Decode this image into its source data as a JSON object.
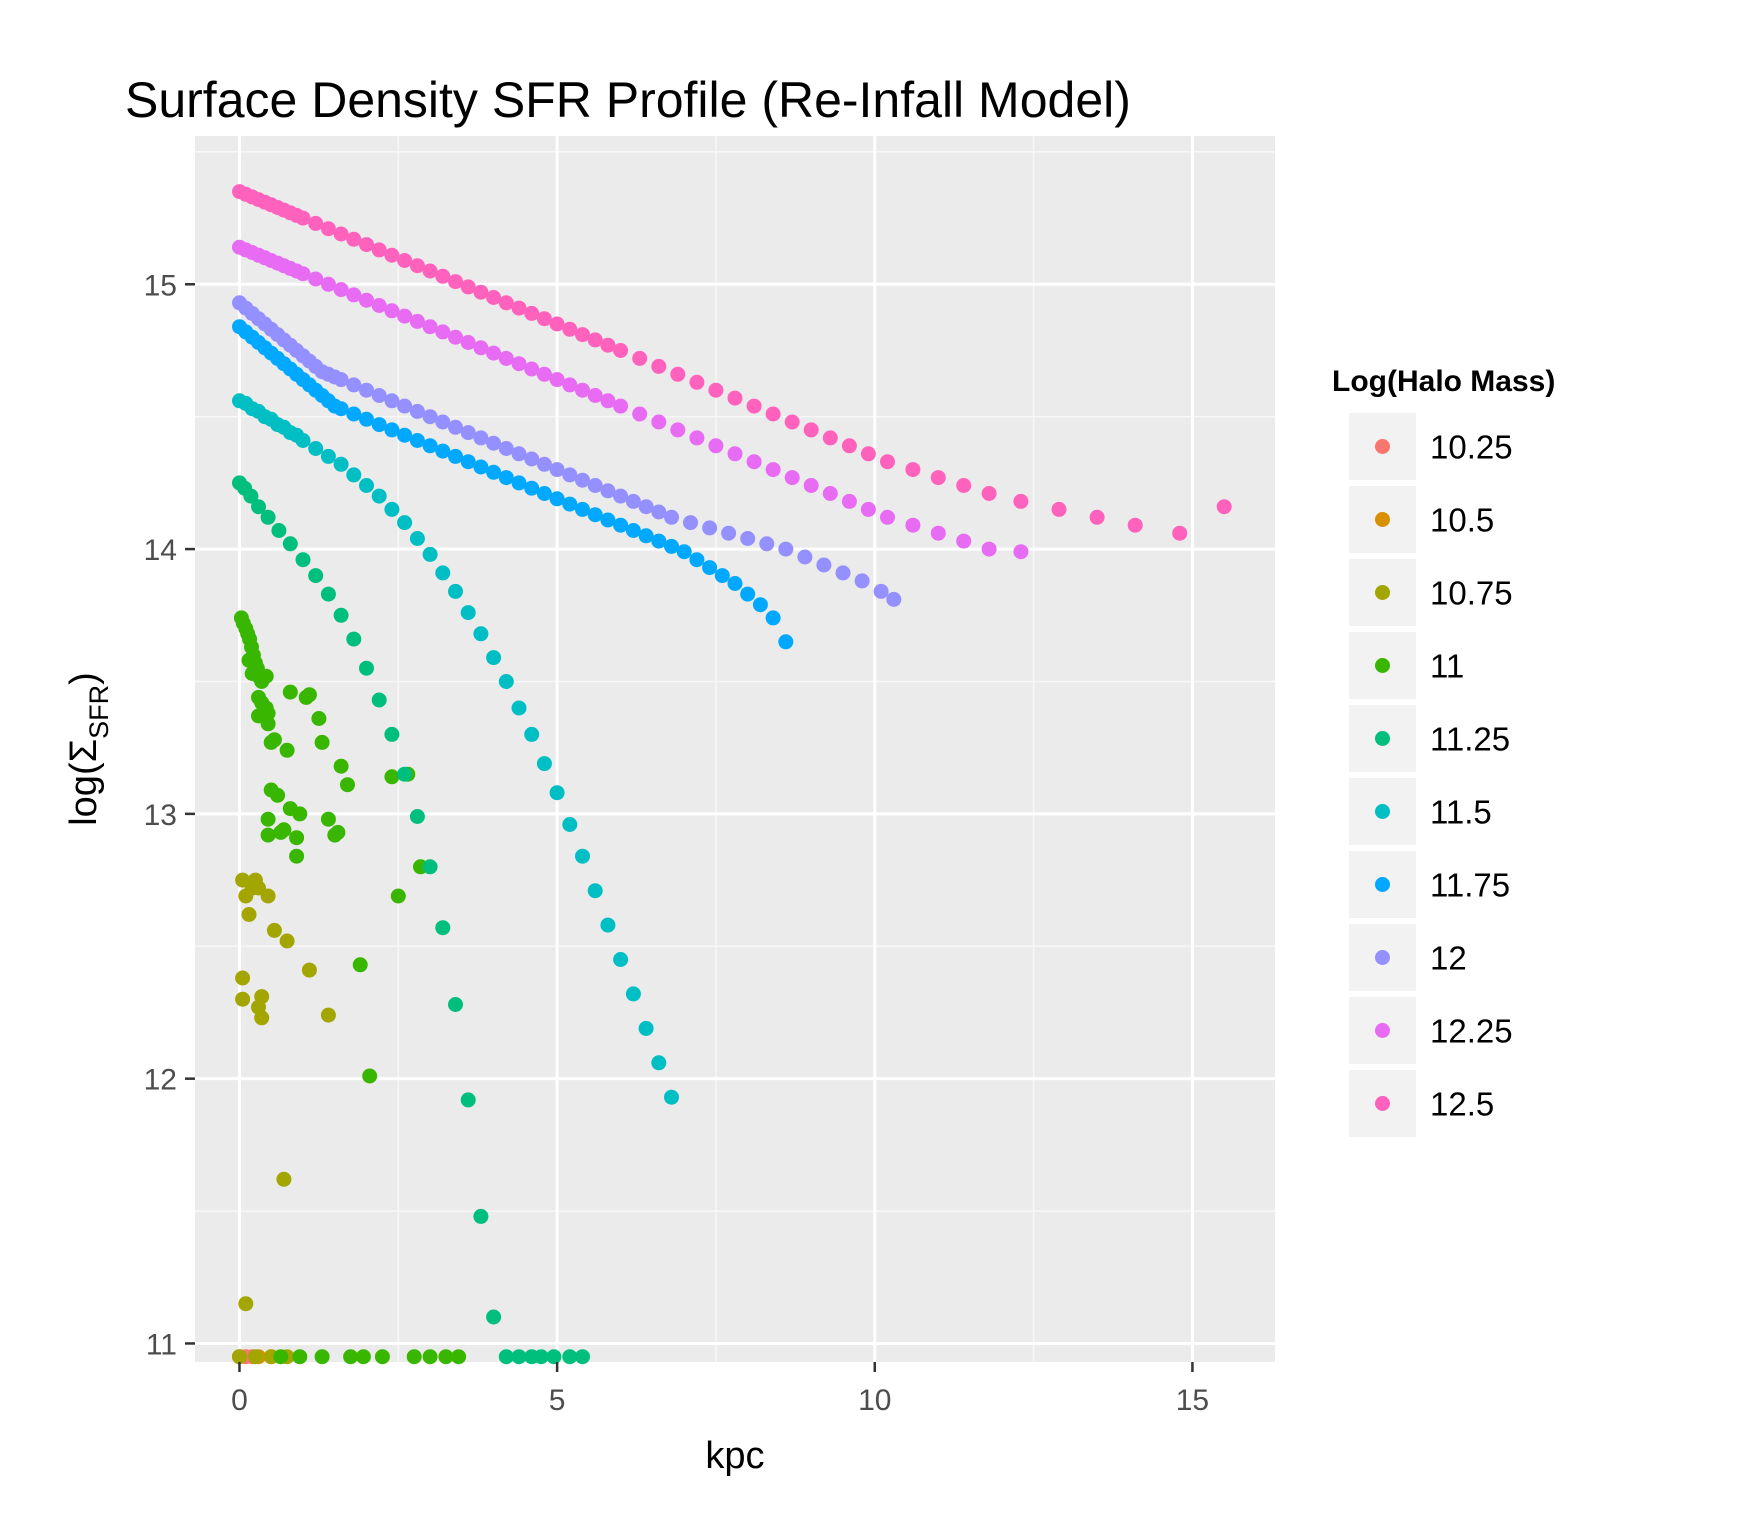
{
  "chart_data": {
    "type": "scatter",
    "title": "Surface Density SFR Profile (Re-Infall Model)",
    "xlabel": "kpc",
    "ylabel": "log(Σ_SFR)",
    "ylabel_parts": {
      "prefix": "log(",
      "sigma": "Σ",
      "subscript": "SFR",
      "suffix": ")"
    },
    "xlim": [
      -0.7,
      16.3
    ],
    "ylim": [
      10.93,
      15.56
    ],
    "x_ticks": [
      0,
      5,
      10,
      15
    ],
    "x_tick_labels": [
      "0",
      "5",
      "10",
      "15"
    ],
    "y_ticks": [
      11,
      12,
      13,
      14,
      15
    ],
    "y_tick_labels": [
      "11",
      "12",
      "13",
      "14",
      "15"
    ],
    "grid": true,
    "legend_title": "Log(Halo Mass)",
    "legend_position": "right",
    "series": [
      {
        "name": "10.25",
        "color": "#F8766D",
        "x": [
          0.0,
          0.1,
          0.2
        ],
        "y": [
          10.95,
          10.95,
          10.95
        ]
      },
      {
        "name": "10.5",
        "color": "#D89000",
        "x": [
          0.0,
          0.3,
          0.5
        ],
        "y": [
          10.95,
          10.95,
          10.95
        ]
      },
      {
        "name": "10.75",
        "color": "#A3A500",
        "x": [
          0.05,
          0.1,
          0.15,
          0.25,
          0.3,
          0.2,
          0.45,
          0.55,
          0.75,
          1.1,
          1.4,
          0.05,
          0.05,
          0.35,
          0.3,
          0.35,
          0.7,
          0.1,
          0.0,
          0.25,
          0.5,
          0.75
        ],
        "y": [
          12.75,
          12.69,
          12.62,
          12.75,
          12.72,
          12.72,
          12.69,
          12.56,
          12.52,
          12.41,
          12.24,
          12.38,
          12.3,
          12.31,
          12.27,
          12.23,
          11.62,
          11.15,
          10.95,
          10.95,
          10.95,
          10.95
        ]
      },
      {
        "name": "11",
        "color": "#39B600",
        "x": [
          0.03,
          0.06,
          0.1,
          0.13,
          0.16,
          0.19,
          0.22,
          0.25,
          0.28,
          0.15,
          0.2,
          0.3,
          0.35,
          0.42,
          0.3,
          0.35,
          0.42,
          0.3,
          0.45,
          0.45,
          0.5,
          0.55,
          0.5,
          0.6,
          0.75,
          0.8,
          1.05,
          1.1,
          1.25,
          1.3,
          1.6,
          1.7,
          0.45,
          0.65,
          0.8,
          0.95,
          0.7,
          0.9,
          1.4,
          1.5,
          0.45,
          0.9,
          1.55,
          2.4,
          2.65,
          2.5,
          2.85,
          1.9,
          2.05,
          0.65,
          0.95,
          1.3,
          1.75,
          1.95,
          2.25,
          2.75,
          3.0,
          3.25,
          3.45
        ],
        "y": [
          13.74,
          13.72,
          13.7,
          13.68,
          13.66,
          13.63,
          13.6,
          13.57,
          13.55,
          13.58,
          13.53,
          13.52,
          13.5,
          13.52,
          13.44,
          13.42,
          13.4,
          13.37,
          13.34,
          13.38,
          13.27,
          13.28,
          13.09,
          13.07,
          13.24,
          13.46,
          13.44,
          13.45,
          13.36,
          13.27,
          13.18,
          13.11,
          12.98,
          12.93,
          13.02,
          13.0,
          12.94,
          12.84,
          12.98,
          12.92,
          12.92,
          12.91,
          12.93,
          13.14,
          13.15,
          12.69,
          12.8,
          12.43,
          12.01,
          10.95,
          10.95,
          10.95,
          10.95,
          10.95,
          10.95,
          10.95,
          10.95,
          10.95,
          10.95
        ]
      },
      {
        "name": "11.25",
        "color": "#00BF7D",
        "x": [
          0.0,
          0.08,
          0.18,
          0.3,
          0.45,
          0.62,
          0.8,
          1.0,
          1.2,
          1.4,
          1.6,
          1.8,
          2.0,
          2.2,
          2.4,
          2.6,
          2.8,
          3.0,
          3.2,
          3.4,
          3.6,
          3.8,
          4.0,
          4.2,
          4.4,
          4.6,
          4.75,
          4.95,
          5.2,
          5.4
        ],
        "y": [
          14.25,
          14.23,
          14.2,
          14.16,
          14.12,
          14.07,
          14.02,
          13.96,
          13.9,
          13.83,
          13.75,
          13.66,
          13.55,
          13.43,
          13.3,
          13.15,
          12.99,
          12.8,
          12.57,
          12.28,
          11.92,
          11.48,
          11.1,
          10.95,
          10.95,
          10.95,
          10.95,
          10.95,
          10.95,
          10.95
        ]
      },
      {
        "name": "11.5",
        "color": "#00BFC4",
        "x": [
          0.0,
          0.1,
          0.2,
          0.3,
          0.4,
          0.5,
          0.6,
          0.7,
          0.8,
          0.9,
          1.0,
          1.2,
          1.4,
          1.6,
          1.8,
          2.0,
          2.2,
          2.4,
          2.6,
          2.8,
          3.0,
          3.2,
          3.4,
          3.6,
          3.8,
          4.0,
          4.2,
          4.4,
          4.6,
          4.8,
          5.0,
          5.2,
          5.4,
          5.6,
          5.8,
          6.0,
          6.2,
          6.4,
          6.6,
          6.8
        ],
        "y": [
          14.56,
          14.55,
          14.53,
          14.52,
          14.5,
          14.49,
          14.47,
          14.46,
          14.44,
          14.43,
          14.41,
          14.38,
          14.35,
          14.32,
          14.28,
          14.24,
          14.2,
          14.15,
          14.1,
          14.04,
          13.98,
          13.91,
          13.84,
          13.76,
          13.68,
          13.59,
          13.5,
          13.4,
          13.3,
          13.19,
          13.08,
          12.96,
          12.84,
          12.71,
          12.58,
          12.45,
          12.32,
          12.19,
          12.06,
          11.93
        ]
      },
      {
        "name": "11.75",
        "color": "#00A9FF",
        "x": [
          0.0,
          0.1,
          0.2,
          0.3,
          0.4,
          0.5,
          0.6,
          0.7,
          0.8,
          0.9,
          1.0,
          1.1,
          1.2,
          1.3,
          1.4,
          1.5,
          1.6,
          1.8,
          2.0,
          2.2,
          2.4,
          2.6,
          2.8,
          3.0,
          3.2,
          3.4,
          3.6,
          3.8,
          4.0,
          4.2,
          4.4,
          4.6,
          4.8,
          5.0,
          5.2,
          5.4,
          5.6,
          5.8,
          6.0,
          6.2,
          6.4,
          6.6,
          6.8,
          7.0,
          7.2,
          7.4,
          7.6,
          7.8,
          8.0,
          8.2,
          8.4,
          8.6
        ],
        "y": [
          14.84,
          14.82,
          14.8,
          14.78,
          14.76,
          14.74,
          14.72,
          14.7,
          14.68,
          14.66,
          14.64,
          14.62,
          14.6,
          14.58,
          14.56,
          14.54,
          14.53,
          14.51,
          14.49,
          14.47,
          14.45,
          14.43,
          14.41,
          14.39,
          14.37,
          14.35,
          14.33,
          14.31,
          14.29,
          14.27,
          14.25,
          14.23,
          14.21,
          14.19,
          14.17,
          14.15,
          14.13,
          14.11,
          14.09,
          14.07,
          14.05,
          14.03,
          14.01,
          13.99,
          13.96,
          13.93,
          13.9,
          13.87,
          13.83,
          13.79,
          13.74,
          13.65
        ]
      },
      {
        "name": "12",
        "color": "#9590FF",
        "x": [
          0.0,
          0.1,
          0.2,
          0.3,
          0.4,
          0.5,
          0.6,
          0.7,
          0.8,
          0.9,
          1.0,
          1.1,
          1.2,
          1.3,
          1.4,
          1.5,
          1.6,
          1.8,
          2.0,
          2.2,
          2.4,
          2.6,
          2.8,
          3.0,
          3.2,
          3.4,
          3.6,
          3.8,
          4.0,
          4.2,
          4.4,
          4.6,
          4.8,
          5.0,
          5.2,
          5.4,
          5.6,
          5.8,
          6.0,
          6.2,
          6.4,
          6.6,
          6.8,
          7.1,
          7.4,
          7.7,
          8.0,
          8.3,
          8.6,
          8.9,
          9.2,
          9.5,
          9.8,
          10.1,
          10.3
        ],
        "y": [
          14.93,
          14.91,
          14.89,
          14.87,
          14.85,
          14.83,
          14.81,
          14.79,
          14.77,
          14.75,
          14.73,
          14.71,
          14.69,
          14.67,
          14.66,
          14.65,
          14.64,
          14.62,
          14.6,
          14.58,
          14.56,
          14.54,
          14.52,
          14.5,
          14.48,
          14.46,
          14.44,
          14.42,
          14.4,
          14.38,
          14.36,
          14.34,
          14.32,
          14.3,
          14.28,
          14.26,
          14.24,
          14.22,
          14.2,
          14.18,
          14.16,
          14.14,
          14.12,
          14.1,
          14.08,
          14.06,
          14.04,
          14.02,
          14.0,
          13.97,
          13.94,
          13.91,
          13.88,
          13.84,
          13.81
        ]
      },
      {
        "name": "12.25",
        "color": "#E76BF3",
        "x": [
          0.0,
          0.1,
          0.2,
          0.3,
          0.4,
          0.5,
          0.6,
          0.7,
          0.8,
          0.9,
          1.0,
          1.2,
          1.4,
          1.6,
          1.8,
          2.0,
          2.2,
          2.4,
          2.6,
          2.8,
          3.0,
          3.2,
          3.4,
          3.6,
          3.8,
          4.0,
          4.2,
          4.4,
          4.6,
          4.8,
          5.0,
          5.2,
          5.4,
          5.6,
          5.8,
          6.0,
          6.3,
          6.6,
          6.9,
          7.2,
          7.5,
          7.8,
          8.1,
          8.4,
          8.7,
          9.0,
          9.3,
          9.6,
          9.9,
          10.2,
          10.6,
          11.0,
          11.4,
          11.8,
          12.3
        ],
        "y": [
          15.14,
          15.13,
          15.12,
          15.11,
          15.1,
          15.09,
          15.08,
          15.07,
          15.06,
          15.05,
          15.04,
          15.02,
          15.0,
          14.98,
          14.96,
          14.94,
          14.92,
          14.9,
          14.88,
          14.86,
          14.84,
          14.82,
          14.8,
          14.78,
          14.76,
          14.74,
          14.72,
          14.7,
          14.68,
          14.66,
          14.64,
          14.62,
          14.6,
          14.58,
          14.56,
          14.54,
          14.51,
          14.48,
          14.45,
          14.42,
          14.39,
          14.36,
          14.33,
          14.3,
          14.27,
          14.24,
          14.21,
          14.18,
          14.15,
          14.12,
          14.09,
          14.06,
          14.03,
          14.0,
          13.99
        ]
      },
      {
        "name": "12.5",
        "color": "#FF62BC",
        "x": [
          0.0,
          0.1,
          0.2,
          0.3,
          0.4,
          0.5,
          0.6,
          0.7,
          0.8,
          0.9,
          1.0,
          1.2,
          1.4,
          1.6,
          1.8,
          2.0,
          2.2,
          2.4,
          2.6,
          2.8,
          3.0,
          3.2,
          3.4,
          3.6,
          3.8,
          4.0,
          4.2,
          4.4,
          4.6,
          4.8,
          5.0,
          5.2,
          5.4,
          5.6,
          5.8,
          6.0,
          6.3,
          6.6,
          6.9,
          7.2,
          7.5,
          7.8,
          8.1,
          8.4,
          8.7,
          9.0,
          9.3,
          9.6,
          9.9,
          10.2,
          10.6,
          11.0,
          11.4,
          11.8,
          12.3,
          12.9,
          13.5,
          14.1,
          14.8,
          15.5
        ],
        "y": [
          15.35,
          15.34,
          15.33,
          15.32,
          15.31,
          15.3,
          15.29,
          15.28,
          15.27,
          15.26,
          15.25,
          15.23,
          15.21,
          15.19,
          15.17,
          15.15,
          15.13,
          15.11,
          15.09,
          15.07,
          15.05,
          15.03,
          15.01,
          14.99,
          14.97,
          14.95,
          14.93,
          14.91,
          14.89,
          14.87,
          14.85,
          14.83,
          14.81,
          14.79,
          14.77,
          14.75,
          14.72,
          14.69,
          14.66,
          14.63,
          14.6,
          14.57,
          14.54,
          14.51,
          14.48,
          14.45,
          14.42,
          14.39,
          14.36,
          14.33,
          14.3,
          14.27,
          14.24,
          14.21,
          14.18,
          14.15,
          14.12,
          14.09,
          14.06,
          14.16
        ]
      }
    ]
  }
}
